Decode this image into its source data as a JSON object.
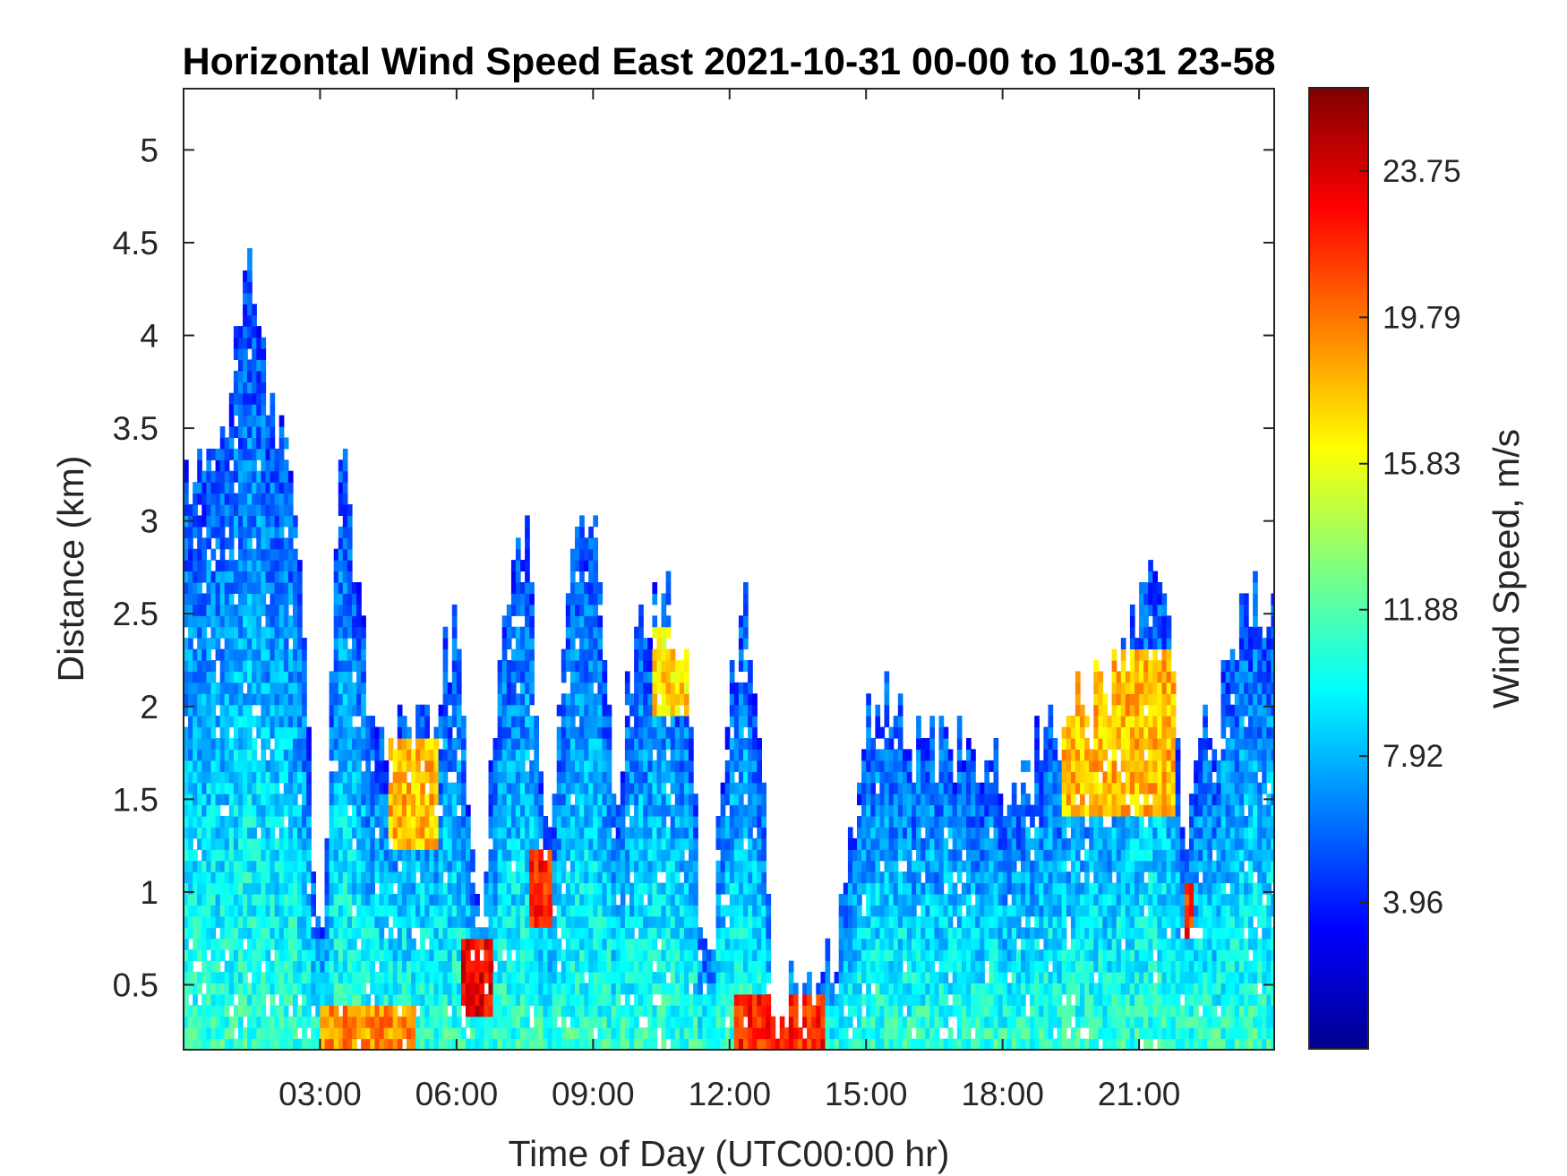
{
  "chart_data": {
    "type": "heatmap",
    "title": "Horizontal Wind Speed East 2021-10-31 00-00 to 10-31 23-58",
    "xlabel": "Time of Day (UTC00:00 hr)",
    "ylabel": "Distance (km)",
    "colorbar_label": "Wind Speed, m/s",
    "colormap": "jet",
    "xlim_hours": [
      0,
      23.97
    ],
    "ylim_km": [
      0.15,
      5.33
    ],
    "x_ticks": [
      {
        "value": 3,
        "label": "03:00"
      },
      {
        "value": 6,
        "label": "06:00"
      },
      {
        "value": 9,
        "label": "09:00"
      },
      {
        "value": 12,
        "label": "12:00"
      },
      {
        "value": 15,
        "label": "15:00"
      },
      {
        "value": 18,
        "label": "18:00"
      },
      {
        "value": 21,
        "label": "21:00"
      }
    ],
    "y_ticks": [
      {
        "value": 0.5,
        "label": "0.5"
      },
      {
        "value": 1,
        "label": "1"
      },
      {
        "value": 1.5,
        "label": "1.5"
      },
      {
        "value": 2,
        "label": "2"
      },
      {
        "value": 2.5,
        "label": "2.5"
      },
      {
        "value": 3,
        "label": "3"
      },
      {
        "value": 3.5,
        "label": "3.5"
      },
      {
        "value": 4,
        "label": "4"
      },
      {
        "value": 4.5,
        "label": "4.5"
      },
      {
        "value": 5,
        "label": "5"
      }
    ],
    "colorbar_range": [
      0,
      26.0
    ],
    "colorbar_ticks": [
      {
        "value": 3.96,
        "label": "3.96"
      },
      {
        "value": 7.92,
        "label": "7.92"
      },
      {
        "value": 11.88,
        "label": "11.88"
      },
      {
        "value": 15.83,
        "label": "15.83"
      },
      {
        "value": 19.79,
        "label": "19.79"
      },
      {
        "value": 23.75,
        "label": "23.75"
      }
    ],
    "grid": false,
    "data_top_km_by_hour": [
      {
        "hour": 0.1,
        "top_km": 3.2
      },
      {
        "hour": 0.5,
        "top_km": 3.3
      },
      {
        "hour": 1.0,
        "top_km": 3.7
      },
      {
        "hour": 1.5,
        "top_km": 4.3
      },
      {
        "hour": 2.0,
        "top_km": 3.5
      },
      {
        "hour": 2.5,
        "top_km": 3.0
      },
      {
        "hour": 3.0,
        "top_km": 0.5
      },
      {
        "hour": 3.5,
        "top_km": 3.5
      },
      {
        "hour": 4.0,
        "top_km": 2.2
      },
      {
        "hour": 4.5,
        "top_km": 1.8
      },
      {
        "hour": 5.0,
        "top_km": 1.8
      },
      {
        "hour": 5.5,
        "top_km": 1.8
      },
      {
        "hour": 6.0,
        "top_km": 2.5
      },
      {
        "hour": 6.5,
        "top_km": 0.8
      },
      {
        "hour": 7.0,
        "top_km": 2.4
      },
      {
        "hour": 7.5,
        "top_km": 3.0
      },
      {
        "hour": 8.0,
        "top_km": 1.3
      },
      {
        "hour": 8.5,
        "top_km": 2.6
      },
      {
        "hour": 9.0,
        "top_km": 3.0
      },
      {
        "hour": 9.5,
        "top_km": 1.5
      },
      {
        "hour": 10.0,
        "top_km": 2.3
      },
      {
        "hour": 10.5,
        "top_km": 2.6
      },
      {
        "hour": 11.0,
        "top_km": 2.3
      },
      {
        "hour": 11.5,
        "top_km": 0.3
      },
      {
        "hour": 12.0,
        "top_km": 2.3
      },
      {
        "hour": 12.5,
        "top_km": 2.5
      },
      {
        "hour": 13.0,
        "top_km": 0.3
      },
      {
        "hour": 13.5,
        "top_km": 0.4
      },
      {
        "hour": 14.0,
        "top_km": 0.4
      },
      {
        "hour": 14.5,
        "top_km": 0.9
      },
      {
        "hour": 15.0,
        "top_km": 2.0
      },
      {
        "hour": 15.5,
        "top_km": 1.9
      },
      {
        "hour": 16.0,
        "top_km": 1.8
      },
      {
        "hour": 16.5,
        "top_km": 1.7
      },
      {
        "hour": 17.0,
        "top_km": 1.7
      },
      {
        "hour": 17.5,
        "top_km": 1.6
      },
      {
        "hour": 18.0,
        "top_km": 1.5
      },
      {
        "hour": 18.5,
        "top_km": 1.5
      },
      {
        "hour": 19.0,
        "top_km": 1.8
      },
      {
        "hour": 19.5,
        "top_km": 2.0
      },
      {
        "hour": 20.0,
        "top_km": 2.0
      },
      {
        "hour": 20.5,
        "top_km": 2.1
      },
      {
        "hour": 21.0,
        "top_km": 2.5
      },
      {
        "hour": 21.5,
        "top_km": 2.7
      },
      {
        "hour": 22.0,
        "top_km": 1.4
      },
      {
        "hour": 22.5,
        "top_km": 1.8
      },
      {
        "hour": 23.0,
        "top_km": 2.3
      },
      {
        "hour": 23.5,
        "top_km": 2.5
      }
    ],
    "high_speed_regions": [
      {
        "hours": [
          12.0,
          14.0
        ],
        "km": [
          0.15,
          0.4
        ],
        "speed_ms": 22
      },
      {
        "hours": [
          6.0,
          6.7
        ],
        "km": [
          0.3,
          0.7
        ],
        "speed_ms": 23
      },
      {
        "hours": [
          7.5,
          8.0
        ],
        "km": [
          0.8,
          1.2
        ],
        "speed_ms": 22
      },
      {
        "hours": [
          22.0,
          22.2
        ],
        "km": [
          0.7,
          1.0
        ],
        "speed_ms": 22
      },
      {
        "hours": [
          3.0,
          5.0
        ],
        "km": [
          0.15,
          0.35
        ],
        "speed_ms": 19
      },
      {
        "hours": [
          19.3,
          21.8
        ],
        "km": [
          1.4,
          2.3
        ],
        "speed_ms": 18
      },
      {
        "hours": [
          4.5,
          5.5
        ],
        "km": [
          1.2,
          1.8
        ],
        "speed_ms": 18
      },
      {
        "hours": [
          10.2,
          11.0
        ],
        "km": [
          1.9,
          2.4
        ],
        "speed_ms": 17
      }
    ]
  }
}
